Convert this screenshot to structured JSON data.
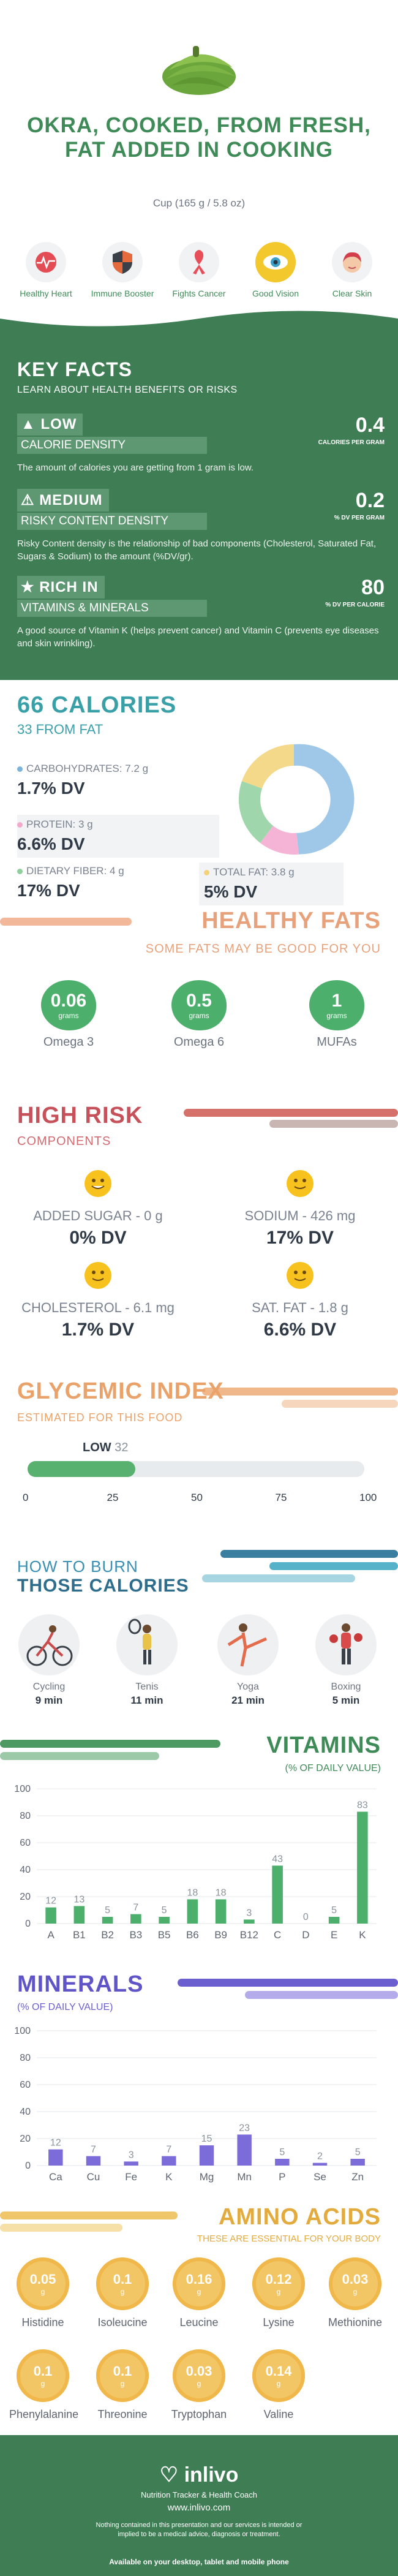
{
  "title": "OKRA, COOKED, FROM FRESH, FAT ADDED IN COOKING",
  "serving": "Cup (165 g / 5.8 oz)",
  "benefits": [
    "Healthy Heart",
    "Immune Booster",
    "Fights Cancer",
    "Good Vision",
    "Clear Skin"
  ],
  "key_facts": {
    "heading": "KEY FACTS",
    "subheading": "LEARN ABOUT HEALTH BENEFITS OR RISKS",
    "items": [
      {
        "level": "LOW",
        "name": "CALORIE DENSITY",
        "value": "0.4",
        "unit": "CALORIES PER GRAM",
        "desc": "The amount of calories you are getting from 1 gram is low."
      },
      {
        "level": "MEDIUM",
        "name": "RISKY CONTENT DENSITY",
        "value": "0.2",
        "unit": "% DV PER GRAM",
        "desc": "Risky Content density is the relationship of bad components (Cholesterol, Saturated Fat, Sugars & Sodium) to the amount (%DV/gr)."
      },
      {
        "level": "RICH IN",
        "name": "VITAMINS & MINERALS",
        "value": "80",
        "unit": "% DV PER CALORIE",
        "desc": "A good source of Vitamin K (helps prevent cancer) and Vitamin C (prevents eye diseases and skin wrinkling)."
      }
    ]
  },
  "calories": {
    "heading": "66 CALORIES",
    "sub": "33 FROM FAT",
    "carbs": {
      "label": "CARBOHYDRATES: 7.2 g",
      "dv": "1.7% DV"
    },
    "protein": {
      "label": "PROTEIN: 3 g",
      "dv": "6.6% DV"
    },
    "fiber": {
      "label": "DIETARY FIBER: 4 g",
      "dv": "17% DV"
    },
    "fat": {
      "label": "TOTAL FAT: 3.8 g",
      "dv": "5% DV"
    }
  },
  "healthy_fats": {
    "heading": "HEALTHY FATS",
    "sub": "SOME FATS MAY BE GOOD FOR YOU",
    "unit": "grams",
    "items": [
      {
        "value": "0.06",
        "name": "Omega 3"
      },
      {
        "value": "0.5",
        "name": "Omega 6"
      },
      {
        "value": "1",
        "name": "MUFAs"
      }
    ]
  },
  "high_risk": {
    "heading": "HIGH RISK",
    "sub": "COMPONENTS",
    "items": [
      {
        "label": "ADDED SUGAR - 0 g",
        "dv": "0% DV"
      },
      {
        "label": "SODIUM - 426 mg",
        "dv": "17% DV"
      },
      {
        "label": "CHOLESTEROL - 6.1 mg",
        "dv": "1.7% DV"
      },
      {
        "label": "SAT. FAT - 1.8 g",
        "dv": "6.6% DV"
      }
    ]
  },
  "glycemic": {
    "heading": "GLYCEMIC INDEX",
    "sub": "ESTIMATED FOR THIS FOOD",
    "level": "LOW",
    "value": 32,
    "value_text": "32",
    "ticks": [
      "0",
      "25",
      "50",
      "75",
      "100"
    ],
    "colors": {
      "fill": "#58b16f",
      "track": "#e8ebee"
    }
  },
  "burn": {
    "heading1": "HOW TO BURN",
    "heading2": "THOSE CALORIES",
    "items": [
      {
        "name": "Cycling",
        "time": "9 min"
      },
      {
        "name": "Tenis",
        "time": "11 min"
      },
      {
        "name": "Yoga",
        "time": "21 min"
      },
      {
        "name": "Boxing",
        "time": "5 min"
      }
    ]
  },
  "vitamins": {
    "heading": "VITAMINS",
    "sub": "(% OF DAILY VALUE)",
    "chart_data": {
      "type": "bar",
      "categories": [
        "A",
        "B1",
        "B2",
        "B3",
        "B5",
        "B6",
        "B9",
        "B12",
        "C",
        "D",
        "E",
        "K"
      ],
      "values": [
        12,
        13,
        5,
        7,
        5,
        18,
        18,
        3,
        43,
        0,
        5,
        83
      ],
      "ylim": [
        0,
        100
      ],
      "yticks": [
        "0",
        "20",
        "40",
        "60",
        "80",
        "100"
      ],
      "color": "#4caf6c"
    }
  },
  "minerals": {
    "heading": "MINERALS",
    "sub": "(% OF DAILY VALUE)",
    "chart_data": {
      "type": "bar",
      "categories": [
        "Ca",
        "Cu",
        "Fe",
        "K",
        "Mg",
        "Mn",
        "P",
        "Se",
        "Zn"
      ],
      "values": [
        12,
        7,
        3,
        7,
        15,
        23,
        5,
        2,
        5
      ],
      "ylim": [
        0,
        100
      ],
      "yticks": [
        "0",
        "20",
        "40",
        "60",
        "80",
        "100"
      ],
      "color": "#7b6cd9"
    }
  },
  "amino": {
    "heading": "AMINO ACIDS",
    "sub": "THESE ARE ESSENTIAL FOR YOUR BODY",
    "unit": "g",
    "items": [
      {
        "value": "0.05",
        "name": "Histidine"
      },
      {
        "value": "0.1",
        "name": "Isoleucine"
      },
      {
        "value": "0.16",
        "name": "Leucine"
      },
      {
        "value": "0.12",
        "name": "Lysine"
      },
      {
        "value": "0.03",
        "name": "Methionine"
      },
      {
        "value": "0.1",
        "name": "Phenylalanine"
      },
      {
        "value": "0.1",
        "name": "Threonine"
      },
      {
        "value": "0.03",
        "name": "Tryptophan"
      },
      {
        "value": "0.14",
        "name": "Valine"
      }
    ]
  },
  "footer": {
    "brand": "inlivo",
    "tagline": "Nutrition Tracker & Health Coach",
    "url": "www.inlivo.com",
    "disclaimer": "Nothing contained in this presentation and our services is intended or implied to be a medical advice, diagnosis or treatment.",
    "available": "Available on your desktop, tablet and mobile phone"
  }
}
